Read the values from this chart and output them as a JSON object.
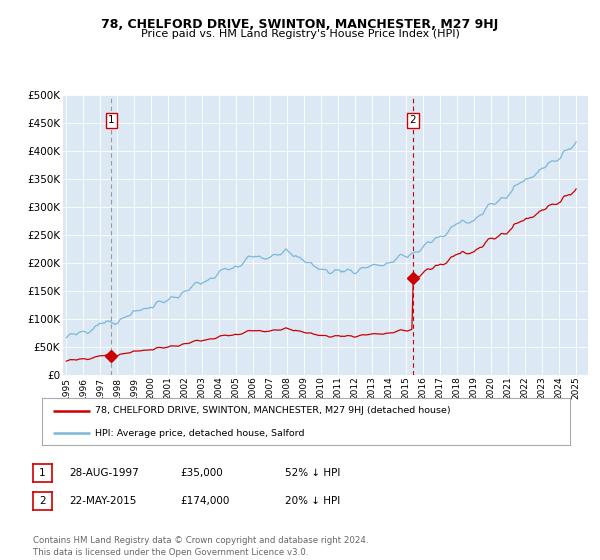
{
  "title": "78, CHELFORD DRIVE, SWINTON, MANCHESTER, M27 9HJ",
  "subtitle": "Price paid vs. HM Land Registry's House Price Index (HPI)",
  "background_color": "#dce9f5",
  "plot_bg_color": "#dce9f5",
  "fig_bg_color": "#ffffff",
  "hpi_color": "#7ab8d9",
  "price_color": "#cc0000",
  "sale1_date_num": 1997.65,
  "sale1_price": 35000,
  "sale2_date_num": 2015.38,
  "sale2_price": 174000,
  "ylim": [
    0,
    500000
  ],
  "xlim_start": 1994.8,
  "xlim_end": 2025.7,
  "yticks": [
    0,
    50000,
    100000,
    150000,
    200000,
    250000,
    300000,
    350000,
    400000,
    450000,
    500000
  ],
  "ytick_labels": [
    "£0",
    "£50K",
    "£100K",
    "£150K",
    "£200K",
    "£250K",
    "£300K",
    "£350K",
    "£400K",
    "£450K",
    "£500K"
  ],
  "legend_label_red": "78, CHELFORD DRIVE, SWINTON, MANCHESTER, M27 9HJ (detached house)",
  "legend_label_blue": "HPI: Average price, detached house, Salford",
  "annotation1_label": "1",
  "annotation2_label": "2",
  "table_row1": [
    "1",
    "28-AUG-1997",
    "£35,000",
    "52% ↓ HPI"
  ],
  "table_row2": [
    "2",
    "22-MAY-2015",
    "£174,000",
    "20% ↓ HPI"
  ],
  "footer_text": "Contains HM Land Registry data © Crown copyright and database right 2024.\nThis data is licensed under the Open Government Licence v3.0.",
  "xtick_years": [
    1995,
    1996,
    1997,
    1998,
    1999,
    2000,
    2001,
    2002,
    2003,
    2004,
    2005,
    2006,
    2007,
    2008,
    2009,
    2010,
    2011,
    2012,
    2013,
    2014,
    2015,
    2016,
    2017,
    2018,
    2019,
    2020,
    2021,
    2022,
    2023,
    2024,
    2025
  ]
}
